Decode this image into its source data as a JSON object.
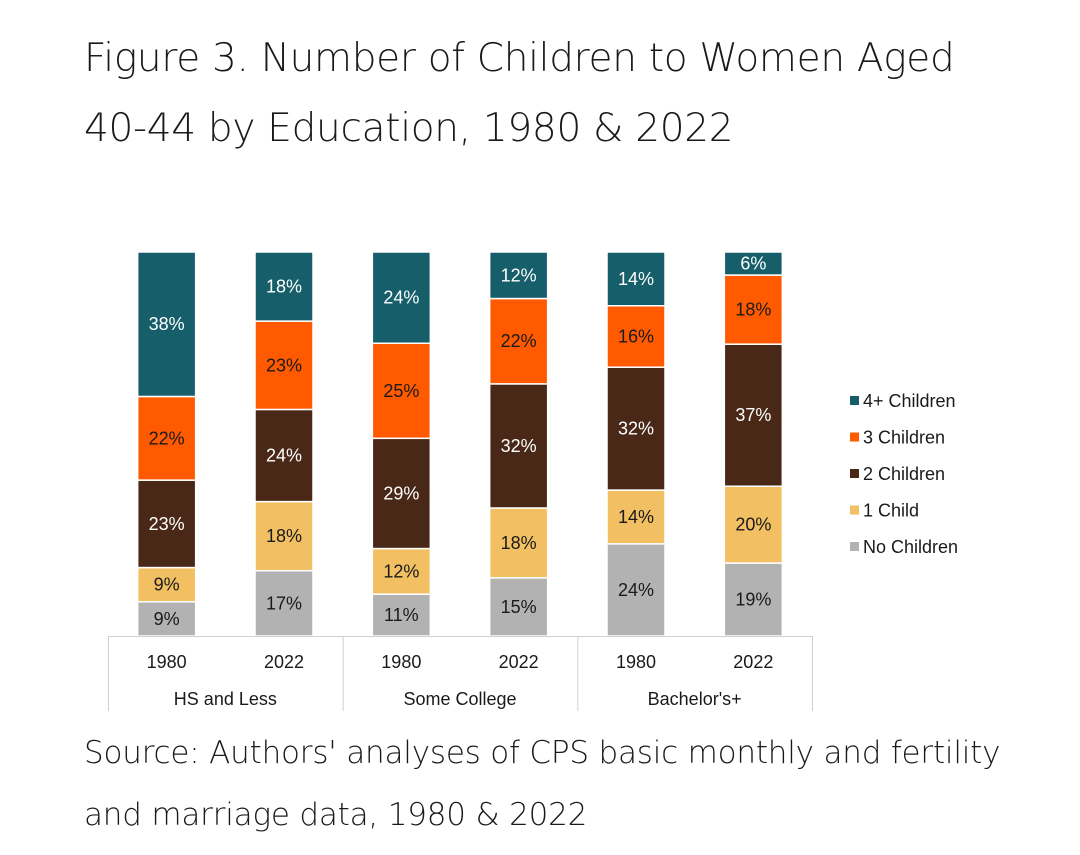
{
  "title": "Figure 3. Number of Children to Women Aged 40-44 by Education, 1980 & 2022",
  "source": "Source: Authors' analyses of CPS basic monthly and fertility and marriage data, 1980 & 2022",
  "chart_data": {
    "type": "bar",
    "stacked": true,
    "normalized_percent": true,
    "groups": [
      {
        "label": "HS and Less",
        "categories": [
          "1980",
          "2022"
        ]
      },
      {
        "label": "Some College",
        "categories": [
          "1980",
          "2022"
        ]
      },
      {
        "label": "Bachelor's+",
        "categories": [
          "1980",
          "2022"
        ]
      }
    ],
    "categories": [
      "1980",
      "2022",
      "1980",
      "2022",
      "1980",
      "2022"
    ],
    "series": [
      {
        "name": "No Children",
        "color": "#b2b2b2",
        "label_color": "#1a1a1a",
        "values": [
          9,
          17,
          11,
          15,
          24,
          19
        ]
      },
      {
        "name": "1 Child",
        "color": "#f2c063",
        "label_color": "#1a1a1a",
        "values": [
          9,
          18,
          12,
          18,
          14,
          20
        ]
      },
      {
        "name": "2 Children",
        "color": "#4a2818",
        "label_color": "#ffffff",
        "values": [
          23,
          24,
          29,
          32,
          32,
          37
        ]
      },
      {
        "name": "3 Children",
        "color": "#ff5a00",
        "label_color": "#1a1a1a",
        "values": [
          22,
          23,
          25,
          22,
          16,
          18
        ]
      },
      {
        "name": "4+ Children",
        "color": "#165e6a",
        "label_color": "#ffffff",
        "values": [
          38,
          18,
          24,
          12,
          14,
          6
        ]
      }
    ],
    "legend_order": [
      "4+ Children",
      "3 Children",
      "2 Children",
      "1 Child",
      "No Children"
    ],
    "legend_position": "right",
    "grid": false
  }
}
